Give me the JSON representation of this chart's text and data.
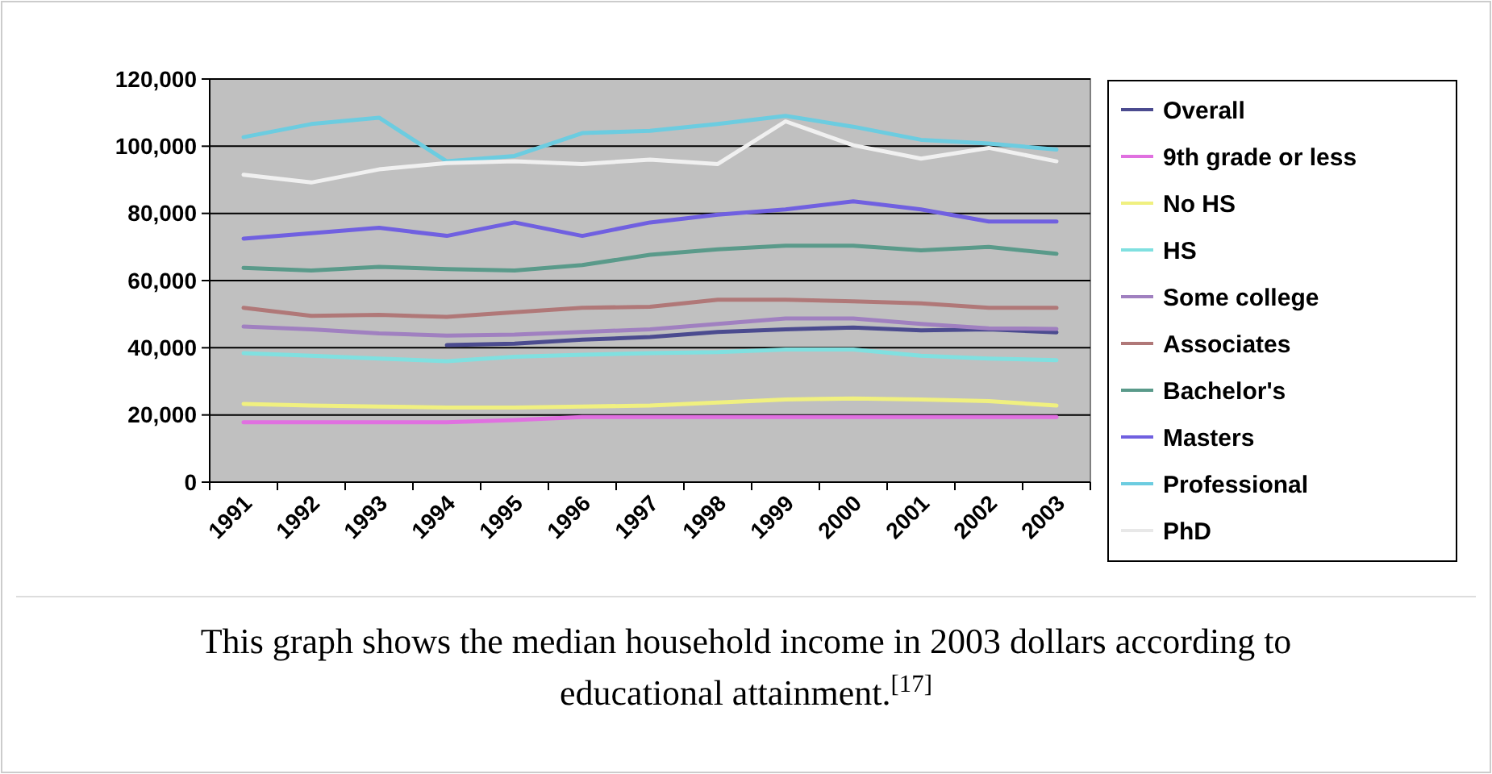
{
  "chart_data": {
    "type": "line",
    "categories": [
      "1991",
      "1992",
      "1993",
      "1994",
      "1995",
      "1996",
      "1997",
      "1998",
      "1999",
      "2000",
      "2001",
      "2002",
      "2003"
    ],
    "series": [
      {
        "name": "Overall",
        "color": "#4b4b8f",
        "values": [
          null,
          null,
          null,
          40800,
          41200,
          42400,
          43200,
          44700,
          45500,
          46000,
          45200,
          45500,
          44600
        ]
      },
      {
        "name": "9th grade or less",
        "color": "#e070e0",
        "values": [
          17800,
          17800,
          17800,
          17800,
          18500,
          19400,
          19400,
          19400,
          19400,
          19400,
          19400,
          19400,
          19400
        ]
      },
      {
        "name": "No HS",
        "color": "#f0f080",
        "values": [
          23300,
          22800,
          22500,
          22200,
          22200,
          22500,
          22800,
          23700,
          24600,
          24900,
          24600,
          24100,
          22800
        ]
      },
      {
        "name": "HS",
        "color": "#80e0e0",
        "values": [
          38400,
          37600,
          36800,
          36000,
          37300,
          37900,
          38400,
          38700,
          39500,
          39500,
          37600,
          36800,
          36300
        ]
      },
      {
        "name": "Some college",
        "color": "#a080c0",
        "values": [
          46300,
          45500,
          44300,
          43600,
          43900,
          44700,
          45500,
          47100,
          48700,
          48700,
          47100,
          45800,
          45600
        ]
      },
      {
        "name": "Associates",
        "color": "#b07878",
        "values": [
          51900,
          49500,
          49800,
          49200,
          50600,
          51900,
          52200,
          54300,
          54300,
          53800,
          53200,
          51900,
          51900
        ]
      },
      {
        "name": "Bachelor's",
        "color": "#5a9a8a",
        "values": [
          63800,
          63000,
          64100,
          63400,
          63000,
          64600,
          67700,
          69300,
          70400,
          70400,
          69000,
          70000,
          68000
        ]
      },
      {
        "name": "Masters",
        "color": "#7060e0",
        "values": [
          72500,
          74100,
          75700,
          73300,
          77300,
          73300,
          77300,
          79600,
          81200,
          83600,
          81200,
          77600,
          77600
        ]
      },
      {
        "name": "Professional",
        "color": "#6ccce0",
        "values": [
          102700,
          106600,
          108500,
          95500,
          97100,
          103900,
          104600,
          106600,
          109000,
          105800,
          101900,
          100800,
          99000
        ]
      },
      {
        "name": "PhD",
        "color": "#f0f0f0",
        "values": [
          91500,
          89200,
          93100,
          95000,
          95500,
          94700,
          96000,
          94700,
          107400,
          100300,
          96300,
          99500,
          95500
        ]
      }
    ],
    "ylim": [
      0,
      120000
    ],
    "yticks": [
      {
        "value": 0,
        "label": "0"
      },
      {
        "value": 20000,
        "label": "20,000"
      },
      {
        "value": 40000,
        "label": "40,000"
      },
      {
        "value": 60000,
        "label": "60,000"
      },
      {
        "value": 80000,
        "label": "80,000"
      },
      {
        "value": 100000,
        "label": "100,000"
      },
      {
        "value": 120000,
        "label": "120,000"
      }
    ],
    "grid": "y",
    "legend": "right",
    "marker": "none",
    "line_style": "solid",
    "annotations": [
      "This graph shows the median household income in 2003 dollars according to educational attainment.$^{[17]}$"
    ]
  }
}
